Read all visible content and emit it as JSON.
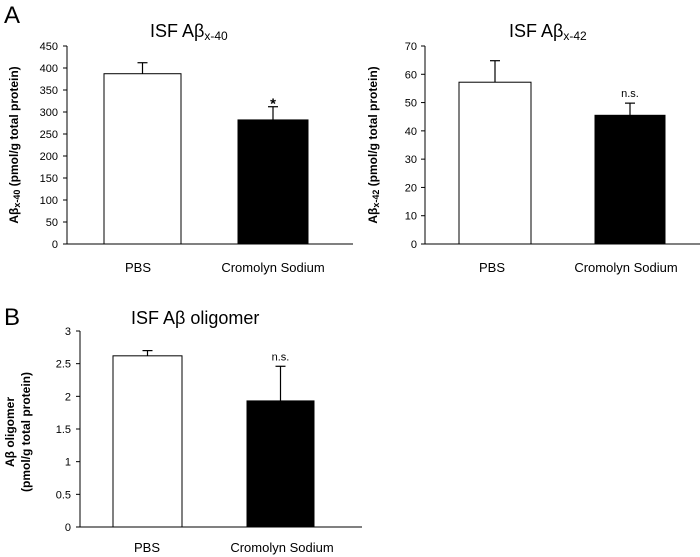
{
  "panels": {
    "a_letter": "A",
    "b_letter": "B"
  },
  "chart_data": [
    {
      "id": "ab40",
      "type": "bar",
      "title": "ISF Aβ",
      "title_sub": "x-40",
      "ylabel": "Aβ",
      "ylabel_sub": "x-40",
      "ylabel_rest": " (pmol/g total protein)",
      "categories": [
        "PBS",
        "Cromolyn Sodium"
      ],
      "values": [
        387,
        282
      ],
      "errors": [
        25,
        30
      ],
      "annotations": [
        "",
        "*"
      ],
      "bar_fills": [
        "#ffffff",
        "#000000"
      ],
      "ylim": [
        0,
        450
      ],
      "yticks": [
        0,
        50,
        100,
        150,
        200,
        250,
        300,
        350,
        400,
        450
      ]
    },
    {
      "id": "ab42",
      "type": "bar",
      "title": "ISF Aβ",
      "title_sub": "x-42",
      "ylabel": "Aβ",
      "ylabel_sub": "x-42",
      "ylabel_rest": " (pmol/g total protein)",
      "categories": [
        "PBS",
        "Cromolyn Sodium"
      ],
      "values": [
        57.2,
        45.5
      ],
      "errors": [
        7.6,
        4.3
      ],
      "annotations": [
        "",
        "n.s."
      ],
      "bar_fills": [
        "#ffffff",
        "#000000"
      ],
      "ylim": [
        0,
        70
      ],
      "yticks": [
        0,
        10,
        20,
        30,
        40,
        50,
        60,
        70
      ]
    },
    {
      "id": "oligomer",
      "type": "bar",
      "title": "ISF Aβ oligomer",
      "title_sub": "",
      "ylabel_lines": [
        "Aβ oligomer",
        "(pmol/g total protein)"
      ],
      "categories": [
        "PBS",
        "Cromolyn Sodium"
      ],
      "values": [
        2.62,
        1.93
      ],
      "errors": [
        0.08,
        0.53
      ],
      "annotations": [
        "",
        "n.s."
      ],
      "bar_fills": [
        "#ffffff",
        "#000000"
      ],
      "ylim": [
        0,
        3
      ],
      "yticks": [
        "0",
        "0.5",
        "1",
        "1.5",
        "2",
        "2.5",
        "3"
      ]
    }
  ]
}
